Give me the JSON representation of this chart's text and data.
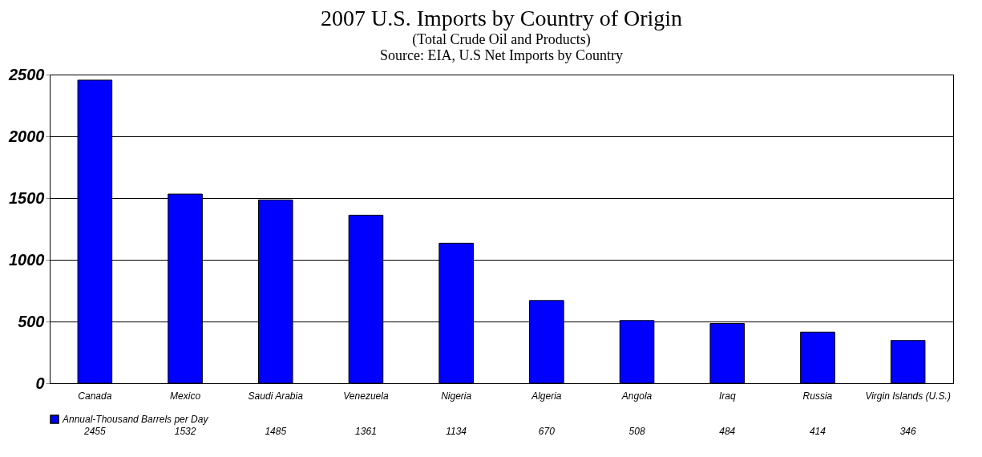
{
  "chart_data": {
    "type": "bar",
    "title": "2007 U.S. Imports by Country of Origin",
    "subtitle": "(Total Crude Oil and Products)",
    "annotations": [
      "Source: EIA, U.S Net Imports by Country"
    ],
    "categories": [
      "Canada",
      "Mexico",
      "Saudi Arabia",
      "Venezuela",
      "Nigeria",
      "Algeria",
      "Angola",
      "Iraq",
      "Russia",
      "Virgin Islands (U.S.)"
    ],
    "series": [
      {
        "name": "Annual-Thousand Barrels per Day",
        "color": "#0000ff",
        "values": [
          2455,
          1532,
          1485,
          1361,
          1134,
          670,
          508,
          484,
          414,
          346
        ]
      }
    ],
    "ylim": [
      0,
      2500
    ],
    "yticks": [
      0,
      500,
      1000,
      1500,
      2000,
      2500
    ],
    "grid": "y",
    "data_labels": true,
    "legend": "bottom"
  }
}
